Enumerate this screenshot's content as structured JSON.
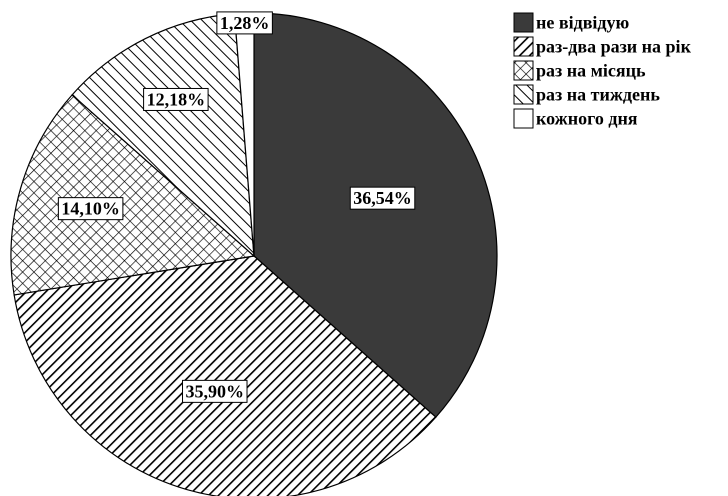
{
  "chart_data": {
    "type": "pie",
    "categories": [
      "не відвідую",
      "раз-два рази на рік",
      "раз на місяць",
      "раз на тиждень",
      "кожного дня"
    ],
    "values": [
      36.54,
      35.9,
      14.1,
      12.18,
      1.28
    ],
    "value_labels": [
      "36,54%",
      "35,90%",
      "14,10%",
      "12,18%",
      "1,28%"
    ],
    "fills": [
      "solid-dark",
      "diagonal-hatch",
      "cross-hatch",
      "back-diagonal-hatch",
      "white"
    ],
    "colors": [
      "#3a3a3a",
      "#000000",
      "#000000",
      "#000000",
      "#ffffff"
    ],
    "legend_position": "right"
  }
}
